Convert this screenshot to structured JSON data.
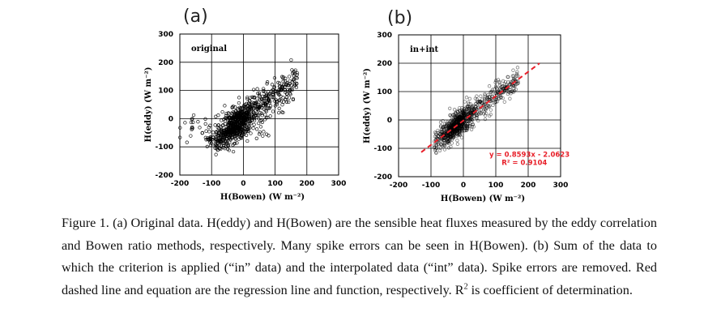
{
  "panel_labels": [
    "(a)",
    "(b)"
  ],
  "chart_data": [
    {
      "type": "scatter",
      "panel": "(a)",
      "inset_label": "original",
      "xlabel": "H(Bowen) (W m⁻²)",
      "ylabel": "H(eddy) (W m⁻²)",
      "xlim": [
        -200,
        300
      ],
      "ylim": [
        -200,
        300
      ],
      "xticks": [
        -200,
        -100,
        0,
        100,
        200,
        300
      ],
      "yticks": [
        -200,
        -100,
        0,
        100,
        200,
        300
      ],
      "grid": true,
      "marker_color": "#000000",
      "regression": null
    },
    {
      "type": "scatter",
      "panel": "(b)",
      "inset_label": "in+int",
      "xlabel": "H(Bowen) (W m⁻²)",
      "ylabel": "H(eddy) (W m⁻²)",
      "xlim": [
        -200,
        300
      ],
      "ylim": [
        -200,
        300
      ],
      "xticks": [
        -200,
        -100,
        0,
        100,
        200,
        300
      ],
      "yticks": [
        -200,
        -100,
        0,
        100,
        200,
        300
      ],
      "grid": true,
      "marker_color": "#000000",
      "regression": {
        "slope": 0.8593,
        "intercept": -2.0623,
        "x_range": [
          -130,
          235
        ],
        "equation": "y = 0.8593x - 2.0623",
        "r2_label": "R² = 0.9104",
        "color": "#e8202a"
      }
    }
  ],
  "caption": {
    "before_r2": "Figure 1. (a) Original data. H(eddy) and H(Bowen) are the sensible heat fluxes measured by the eddy correlation and Bowen ratio methods, respectively. Many spike errors can be seen in H(Bowen). (b) Sum of the data to which the criterion is applied (“in” data) and the interpolated data (“int” data). Spike errors are removed. Red dashed line and equation are the regression line and function, respectively. R",
    "sup": "2",
    "after_r2": " is coefficient of determination."
  }
}
